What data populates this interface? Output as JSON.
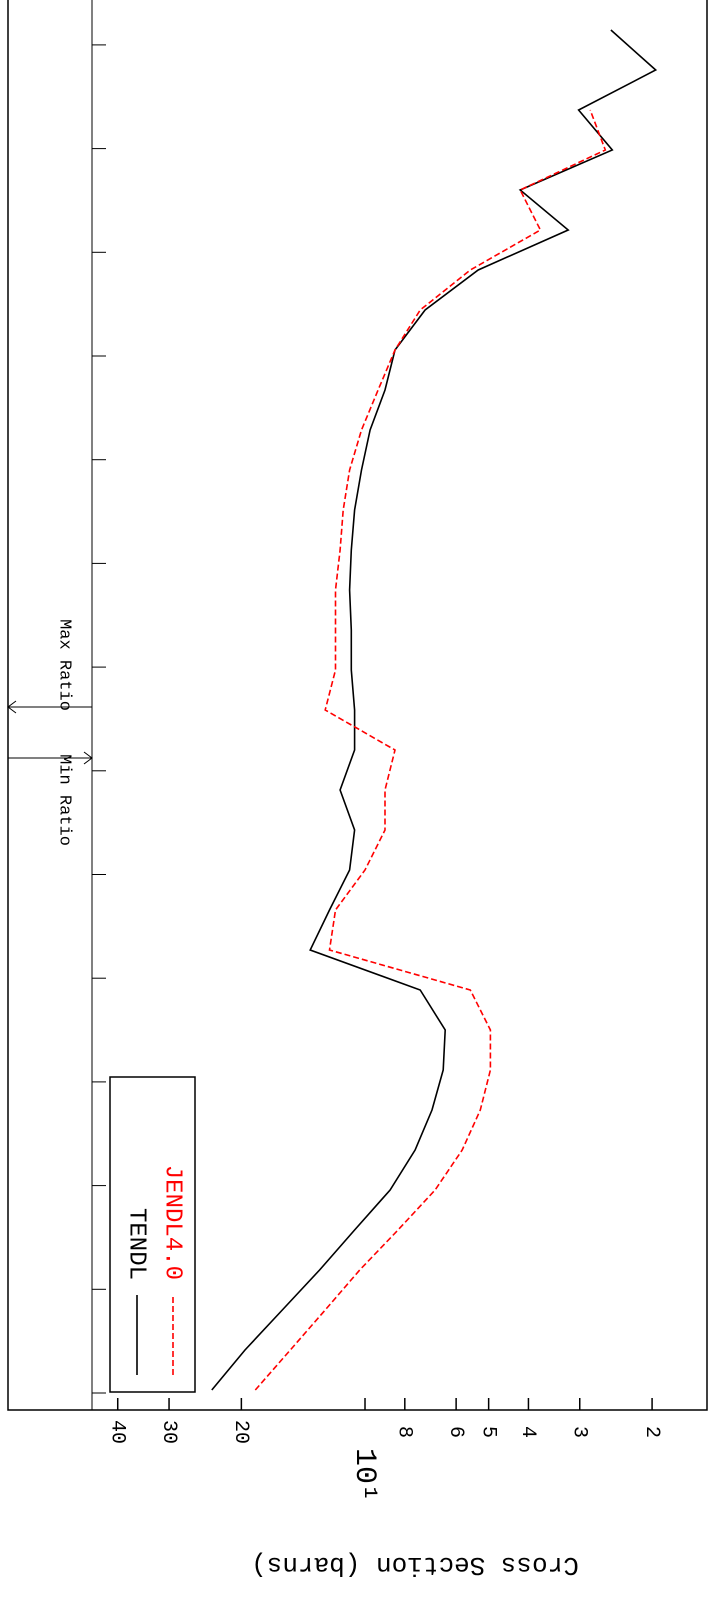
{
  "chart_data": {
    "type": "line",
    "y_label": "Cross Section (barns)",
    "log_y": true,
    "ylim": [
      74,
      1.47
    ],
    "yticks": [
      40,
      30,
      20,
      {
        "value": 10,
        "label": "10¹"
      },
      8,
      6,
      5,
      4,
      3,
      2
    ],
    "categories": [
      null,
      null,
      null,
      null,
      null,
      null,
      null,
      null,
      null,
      null,
      null,
      null,
      null,
      null,
      null,
      null,
      null,
      null,
      null,
      null,
      null,
      null,
      null,
      null,
      null,
      null,
      null,
      null,
      null,
      null,
      null,
      null,
      null,
      null,
      null
    ],
    "series": [
      {
        "name": "TENDL",
        "color": "#000000",
        "dash": false,
        "values": [
          23.6,
          19.6,
          15.9,
          12.9,
          10.6,
          8.69,
          7.55,
          6.87,
          6.45,
          6.38,
          7.34,
          13.6,
          12.2,
          10.9,
          10.6,
          11.5,
          10.6,
          10.6,
          10.8,
          10.8,
          10.9,
          10.8,
          10.6,
          10.2,
          9.72,
          8.94,
          8.45,
          7.14,
          5.3,
          3.2,
          4.19,
          2.5,
          3.02,
          1.96,
          2.52
        ]
      },
      {
        "name": "JENDL4.0",
        "color": "#ff0000",
        "dash": true,
        "values": [
          18.5,
          15.2,
          12.5,
          10.3,
          8.31,
          6.75,
          5.8,
          5.24,
          4.95,
          4.95,
          5.54,
          12.2,
          11.8,
          10.0,
          8.94,
          8.94,
          8.45,
          12.5,
          11.8,
          11.8,
          11.8,
          11.5,
          11.3,
          10.9,
          10.2,
          9.29,
          8.45,
          7.34,
          5.54,
          3.74,
          4.19,
          2.6,
          2.83,
          null,
          null
        ]
      }
    ],
    "annotations": [
      "Min Ratio",
      "Max Ratio"
    ]
  }
}
